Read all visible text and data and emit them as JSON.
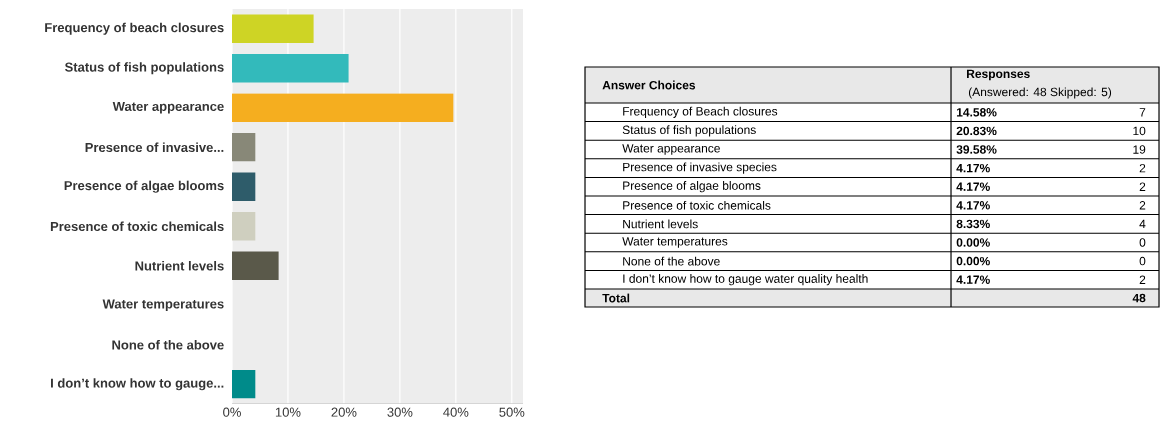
{
  "chart_data": [
    {
      "type": "bar",
      "orientation": "horizontal",
      "categories": [
        "Frequency of beach closures",
        "Status of fish populations",
        "Water appearance",
        "Presence of invasive...",
        "Presence of algae blooms",
        "Presence of toxic chemicals",
        "Nutrient levels",
        "Water temperatures",
        "None of the above",
        "I don’t know how to gauge..."
      ],
      "values": [
        14.58,
        20.83,
        39.58,
        4.17,
        4.17,
        4.17,
        8.33,
        0,
        0,
        4.17
      ],
      "value_labels": [
        "14.58%",
        "20.83%",
        "39.58%",
        "4.17%",
        "4.17%",
        "4.17%",
        "8.33%",
        "0.00%",
        "0.00%",
        "4.17%"
      ],
      "colors": [
        "#ced425",
        "#33babb",
        "#f5ae1f",
        "#888878",
        "#2e5c6a",
        "#cfcfbf",
        "#5a594a",
        "#888878",
        "#888878",
        "#008b8a"
      ],
      "xlim": [
        0,
        52
      ],
      "xticks": [
        {
          "value": 0,
          "label": "0%"
        },
        {
          "value": 10,
          "label": "10%"
        },
        {
          "value": 20,
          "label": "20%"
        },
        {
          "value": 30,
          "label": "30%"
        },
        {
          "value": 40,
          "label": "40%"
        },
        {
          "value": 50,
          "label": "50%"
        }
      ],
      "grid": "x"
    },
    {
      "type": "other",
      "ylabel": "Answer Choices",
      "title": "Responses",
      "subtitle": "(Answered: 48  Skipped: 5)",
      "categories": [
        "Frequency of Beach closures",
        "Status of fish populations",
        "Water appearance",
        "Presence of invasive species",
        "Presence of algae blooms",
        "Presence of toxic chemicals",
        "Nutrient levels",
        "Water temperatures",
        "None of the above",
        "I don’t know how to gauge water quality health"
      ],
      "values": [
        7,
        10,
        19,
        2,
        2,
        2,
        4,
        0,
        0,
        2
      ],
      "data_labels": true,
      "annotations": [
        "Total",
        "48"
      ]
    }
  ]
}
